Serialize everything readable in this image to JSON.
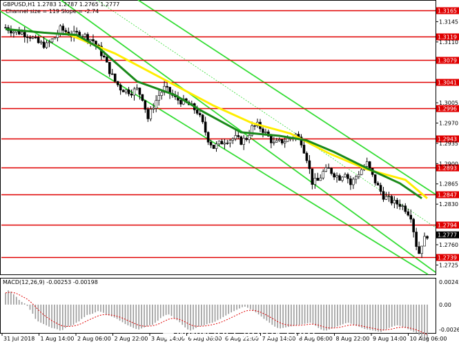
{
  "chart_data": {
    "type": "candlestick",
    "symbol_header": "GBPUSD,H1  1.2783 1.2787 1.2765 1.2777",
    "channel_header": "Channel size = 119 Slope = -2.74",
    "macd_header": "MACD(12,26,9) -0.00253 -0.00198",
    "price_axis_ticks": [
      "1.3145",
      "1.3110",
      "1.3005",
      "1.2970",
      "1.2935",
      "1.2900",
      "1.2865",
      "1.2830",
      "1.2760",
      "1.2725"
    ],
    "price_range": [
      1.271,
      1.318
    ],
    "levels": [
      {
        "label": "1.3165",
        "value": 1.3165
      },
      {
        "label": "1.3119",
        "value": 1.3119
      },
      {
        "label": "1.3079",
        "value": 1.3079
      },
      {
        "label": "1.3041",
        "value": 1.3041
      },
      {
        "label": "1.2996",
        "value": 1.2996
      },
      {
        "label": "1.2943",
        "value": 1.2943
      },
      {
        "label": "1.2893",
        "value": 1.2893
      },
      {
        "label": "1.2847",
        "value": 1.2847
      },
      {
        "label": "1.2794",
        "value": 1.2794
      },
      {
        "label": "1.2739",
        "value": 1.2739
      }
    ],
    "current_price": {
      "label": "1.2777",
      "value": 1.2777
    },
    "macd_axis_ticks": [
      "0.00245",
      "0.00",
      "-0.00267"
    ],
    "macd_range": [
      -0.00267,
      0.00245
    ],
    "time_labels": [
      "31 Jul 2018",
      "1 Aug 14:00",
      "2 Aug 06:00",
      "2 Aug 22:00",
      "3 Aug 14:00",
      "6 Aug 06:00",
      "6 Aug 22:00",
      "7 Aug 14:00",
      "8 Aug 06:00",
      "8 Aug 22:00",
      "9 Aug 14:00",
      "10 Aug 06:00"
    ],
    "close_path": [
      [
        0,
        1.3135
      ],
      [
        3,
        1.3128
      ],
      [
        6,
        1.3126
      ],
      [
        9,
        1.312
      ],
      [
        12,
        1.3108
      ],
      [
        15,
        1.3104
      ],
      [
        18,
        1.3118
      ],
      [
        20,
        1.3132
      ],
      [
        22,
        1.3128
      ],
      [
        24,
        1.3122
      ],
      [
        27,
        1.3125
      ],
      [
        30,
        1.3118
      ],
      [
        32,
        1.3112
      ],
      [
        34,
        1.3098
      ],
      [
        36,
        1.3082
      ],
      [
        38,
        1.306
      ],
      [
        40,
        1.3042
      ],
      [
        42,
        1.303
      ],
      [
        44,
        1.3026
      ],
      [
        46,
        1.3024
      ],
      [
        48,
        1.3028
      ],
      [
        50,
        1.3014
      ],
      [
        52,
        1.2978
      ],
      [
        54,
        1.3
      ],
      [
        56,
        1.3018
      ],
      [
        58,
        1.303
      ],
      [
        60,
        1.3022
      ],
      [
        62,
        1.3012
      ],
      [
        64,
        1.3008
      ],
      [
        66,
        1.3004
      ],
      [
        68,
        1.2998
      ],
      [
        70,
        1.299
      ],
      [
        72,
        1.2968
      ],
      [
        74,
        1.2942
      ],
      [
        76,
        1.2928
      ],
      [
        78,
        1.2934
      ],
      [
        80,
        1.294
      ],
      [
        82,
        1.2942
      ],
      [
        84,
        1.2944
      ],
      [
        86,
        1.2938
      ],
      [
        88,
        1.2944
      ],
      [
        90,
        1.2962
      ],
      [
        92,
        1.2966
      ],
      [
        94,
        1.2958
      ],
      [
        96,
        1.2946
      ],
      [
        98,
        1.2934
      ],
      [
        100,
        1.2937
      ],
      [
        102,
        1.294
      ],
      [
        104,
        1.2944
      ],
      [
        106,
        1.295
      ],
      [
        108,
        1.2938
      ],
      [
        110,
        1.291
      ],
      [
        112,
        1.2868
      ],
      [
        114,
        1.287
      ],
      [
        116,
        1.2885
      ],
      [
        118,
        1.289
      ],
      [
        120,
        1.2882
      ],
      [
        122,
        1.2876
      ],
      [
        124,
        1.2886
      ],
      [
        126,
        1.2864
      ],
      [
        128,
        1.2878
      ],
      [
        130,
        1.289
      ],
      [
        132,
        1.29
      ],
      [
        134,
        1.2878
      ],
      [
        136,
        1.286
      ],
      [
        138,
        1.2844
      ],
      [
        140,
        1.2838
      ],
      [
        142,
        1.2832
      ],
      [
        144,
        1.283
      ],
      [
        146,
        1.2822
      ],
      [
        148,
        1.281
      ],
      [
        150,
        1.276
      ],
      [
        151,
        1.2746
      ],
      [
        152,
        1.2762
      ],
      [
        153,
        1.277
      ],
      [
        154,
        1.2777
      ]
    ],
    "ma_yellow": [
      [
        22,
        1.3125
      ],
      [
        40,
        1.309
      ],
      [
        60,
        1.304
      ],
      [
        76,
        1.3
      ],
      [
        90,
        1.297
      ],
      [
        104,
        1.2952
      ],
      [
        118,
        1.2918
      ],
      [
        132,
        1.289
      ],
      [
        146,
        1.2872
      ],
      [
        154,
        1.284
      ]
    ],
    "ma_green": [
      [
        0,
        1.3132
      ],
      [
        14,
        1.3126
      ],
      [
        26,
        1.3122
      ],
      [
        34,
        1.31
      ],
      [
        48,
        1.3042
      ],
      [
        62,
        1.3018
      ],
      [
        72,
        1.299
      ],
      [
        86,
        1.2954
      ],
      [
        100,
        1.2948
      ],
      [
        110,
        1.294
      ],
      [
        120,
        1.292
      ],
      [
        132,
        1.2892
      ],
      [
        144,
        1.2866
      ],
      [
        152,
        1.284
      ]
    ],
    "macd_hist": [
      45,
      55,
      50,
      40,
      30,
      18,
      10,
      5,
      -5,
      -20,
      -35,
      -55,
      -65,
      -70,
      -75,
      -80,
      -85,
      -90,
      -92,
      -95,
      -100,
      -98,
      -90,
      -85,
      -82,
      -78,
      -70,
      -65,
      -55,
      -48,
      -40,
      -38,
      -35,
      -30,
      -25,
      -28,
      -32,
      -38,
      -42,
      -46,
      -50,
      -55,
      -62,
      -68,
      -75,
      -80,
      -85,
      -90,
      -94,
      -96,
      -92,
      -88,
      -84,
      -80,
      -78,
      -70,
      -62,
      -52,
      -45,
      -40,
      -38,
      -44,
      -52,
      -60,
      -68,
      -78,
      -88,
      -96,
      -100,
      -96,
      -90,
      -85,
      -82,
      -80,
      -76,
      -72,
      -70,
      -66,
      -60,
      -55,
      -48,
      -42,
      -36,
      -30,
      -25,
      -20,
      -15,
      -10,
      -8,
      -12,
      -18,
      -24,
      -30,
      -38,
      -46,
      -55,
      -62,
      -70,
      -78,
      -85,
      -90,
      -92,
      -90,
      -88,
      -86,
      -84,
      -82,
      -80,
      -78,
      -76,
      -74,
      -72,
      -70,
      -75,
      -82,
      -90,
      -96,
      -100,
      -100,
      -96,
      -92,
      -88,
      -84,
      -80,
      -76,
      -72,
      -70,
      -74,
      -78,
      -82,
      -86,
      -90,
      -94,
      -96,
      -98,
      -100,
      -102,
      -104,
      -106,
      -100,
      -95,
      -90,
      -86,
      -82,
      -80,
      -82,
      -86,
      -90,
      -95,
      -100,
      -105,
      -110,
      -118,
      -126,
      -130,
      -135
    ],
    "watermark": "www.instaforex.com"
  }
}
